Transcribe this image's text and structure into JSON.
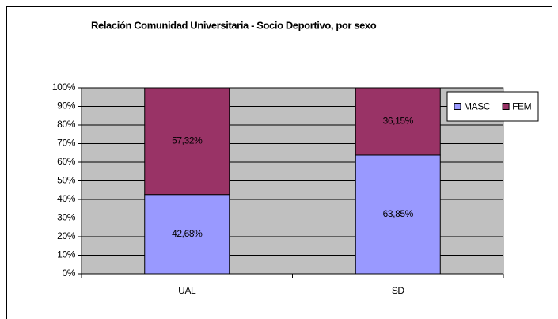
{
  "chart_data": {
    "type": "stacked_bar",
    "title": "Relación Comunidad Universitaria - Socio Deportivo, por sexo",
    "categories": [
      "UAL",
      "SD"
    ],
    "series": [
      {
        "name": "MASC",
        "color": "#9999ff",
        "values": [
          42.68,
          63.85
        ],
        "value_labels": [
          "42,68%",
          "63,85%"
        ]
      },
      {
        "name": "FEM",
        "color": "#993366",
        "values": [
          57.32,
          36.15
        ],
        "value_labels": [
          "57,32%",
          "36,15%"
        ]
      }
    ],
    "ylim": [
      0,
      100
    ],
    "yticks": [
      {
        "value": 0,
        "label": "0%"
      },
      {
        "value": 10,
        "label": "10%"
      },
      {
        "value": 20,
        "label": "20%"
      },
      {
        "value": 30,
        "label": "30%"
      },
      {
        "value": 40,
        "label": "40%"
      },
      {
        "value": 50,
        "label": "50%"
      },
      {
        "value": 60,
        "label": "60%"
      },
      {
        "value": 70,
        "label": "70%"
      },
      {
        "value": 80,
        "label": "80%"
      },
      {
        "value": 90,
        "label": "90%"
      },
      {
        "value": 100,
        "label": "100%"
      }
    ],
    "grid": true,
    "legend": "right",
    "plot_background": "#c0c0c0"
  }
}
